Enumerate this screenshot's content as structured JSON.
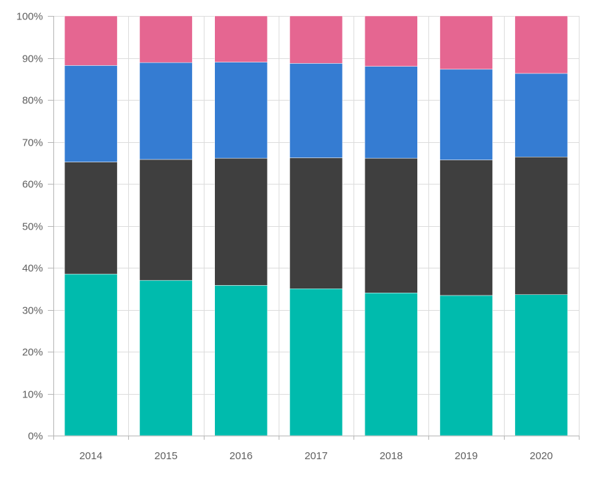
{
  "chart_data": {
    "type": "bar",
    "stacked": "percent",
    "categories": [
      "2014",
      "2015",
      "2016",
      "2017",
      "2018",
      "2019",
      "2020"
    ],
    "ylim": [
      0,
      100
    ],
    "y_ticks": [
      0,
      10,
      20,
      30,
      40,
      50,
      60,
      70,
      80,
      90,
      100
    ],
    "y_tick_labels": [
      "0%",
      "10%",
      "20%",
      "30%",
      "40%",
      "50%",
      "60%",
      "70%",
      "80%",
      "90%",
      "100%"
    ],
    "grid": true,
    "series": [
      {
        "color": "#00bbad",
        "values": [
          38.5,
          37.0,
          35.8,
          35.0,
          34.0,
          33.4,
          33.6
        ]
      },
      {
        "color": "#3f3f3f",
        "values": [
          26.7,
          28.8,
          30.3,
          31.2,
          32.1,
          32.3,
          32.8
        ]
      },
      {
        "color": "#357cd2",
        "values": [
          23.0,
          23.1,
          22.9,
          22.5,
          21.9,
          21.6,
          19.9
        ]
      },
      {
        "color": "#e56691",
        "values": [
          11.8,
          11.1,
          11.0,
          11.3,
          12.0,
          12.7,
          13.7
        ]
      }
    ]
  }
}
